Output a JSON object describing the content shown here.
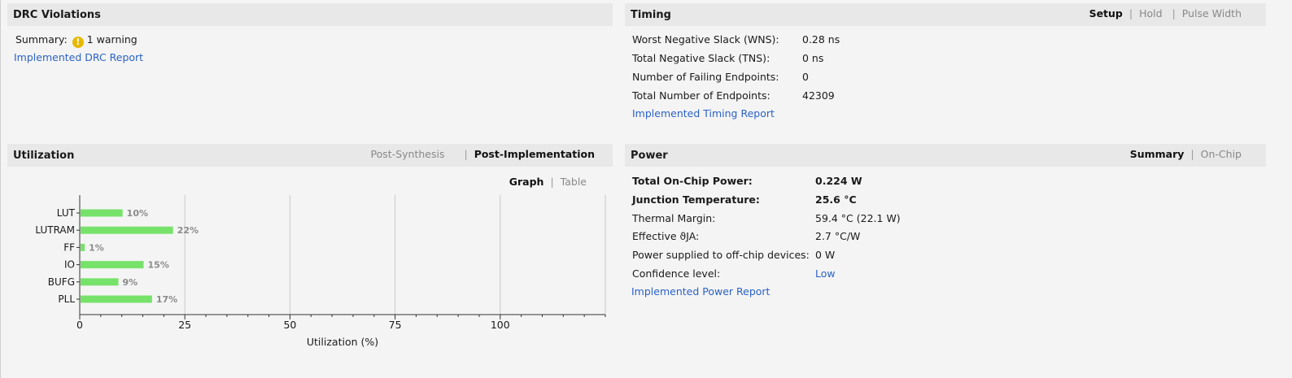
{
  "drc": {
    "title": "DRC Violations",
    "summary_label": "Summary:",
    "warning_icon": "warning-icon",
    "warning_text": "1 warning",
    "report_link": "Implemented DRC Report"
  },
  "timing": {
    "title": "Timing",
    "tabs": [
      {
        "label": "Setup",
        "active": true
      },
      {
        "label": "Hold",
        "active": false
      },
      {
        "label": "Pulse Width",
        "active": false
      }
    ],
    "rows": [
      {
        "label": "Worst Negative Slack (WNS):",
        "value": "0.28 ns"
      },
      {
        "label": "Total Negative Slack (TNS):",
        "value": "0 ns"
      },
      {
        "label": "Number of Failing Endpoints:",
        "value": "0"
      },
      {
        "label": "Total Number of Endpoints:",
        "value": "42309"
      }
    ],
    "report_link": "Implemented Timing Report"
  },
  "utilization": {
    "title": "Utilization",
    "tabs": [
      {
        "label": "Post-Synthesis",
        "active": false
      },
      {
        "label": "Post-Implementation",
        "active": true
      }
    ],
    "view_tabs": [
      {
        "label": "Graph",
        "active": true
      },
      {
        "label": "Table",
        "active": false
      }
    ],
    "bar_color": "#77e26a"
  },
  "chart_data": {
    "type": "bar",
    "orientation": "horizontal",
    "categories": [
      "LUT",
      "LUTRAM",
      "FF",
      "IO",
      "BUFG",
      "PLL"
    ],
    "values": [
      10,
      22,
      1,
      15,
      9,
      17
    ],
    "value_labels": [
      "10%",
      "22%",
      "1%",
      "15%",
      "9%",
      "17%"
    ],
    "xlabel": "Utilization (%)",
    "xticks": [
      0,
      25,
      50,
      75,
      100
    ],
    "xlim": [
      0,
      125
    ],
    "grid": true
  },
  "power": {
    "title": "Power",
    "tabs": [
      {
        "label": "Summary",
        "active": true
      },
      {
        "label": "On-Chip",
        "active": false
      }
    ],
    "rows": [
      {
        "label": "Total On-Chip Power:",
        "value": "0.224 W",
        "bold": true
      },
      {
        "label": "Junction Temperature:",
        "value": "25.6 °C",
        "bold": true
      },
      {
        "label": "Thermal Margin:",
        "value": "59.4 °C (22.1 W)",
        "bold": false
      },
      {
        "label": "Effective ϑJA:",
        "value": "2.7 °C/W",
        "bold": false
      },
      {
        "label": "Power supplied to off-chip devices:",
        "value": "0 W",
        "bold": false
      },
      {
        "label": "Confidence level:",
        "value": "Low",
        "bold": false,
        "link": true
      }
    ],
    "report_link": "Implemented Power Report"
  }
}
